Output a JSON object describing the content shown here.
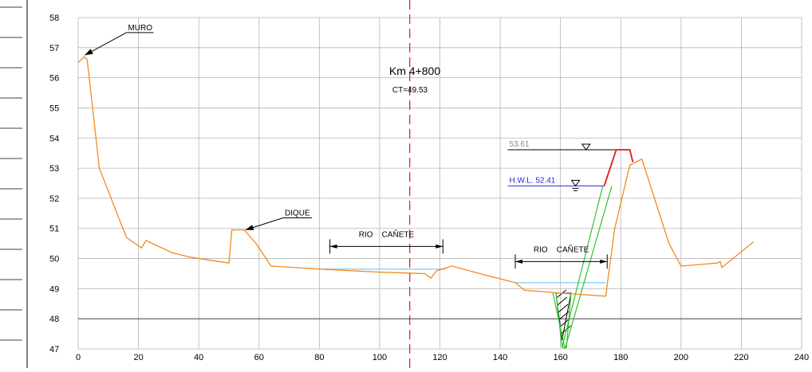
{
  "chart_data": {
    "type": "line",
    "title": "Km  4+800",
    "subtitle": "CT=49.53",
    "xlim": [
      0,
      240
    ],
    "ylim": [
      47,
      58
    ],
    "x_ticks": [
      "0",
      "20",
      "40",
      "60",
      "80",
      "100",
      "120",
      "140",
      "160",
      "180",
      "200",
      "220",
      "240"
    ],
    "y_ticks": [
      "47",
      "48",
      "49",
      "50",
      "51",
      "52",
      "53",
      "54",
      "55",
      "56",
      "57",
      "58"
    ],
    "grid": true,
    "centerline_x": 110,
    "colors": {
      "terrain": "#f08a1c",
      "grid": "#b4b4b4",
      "centerline": "#e01818",
      "levee": "#e01818",
      "hwl": "#1f2fd8",
      "water": "#9fd6f0",
      "green": "#2fc12f",
      "black": "#000000"
    },
    "terrain": [
      [
        0,
        56.5
      ],
      [
        2,
        56.7
      ],
      [
        3,
        56.6
      ],
      [
        7,
        53
      ],
      [
        16,
        50.7
      ],
      [
        21,
        50.35
      ],
      [
        22.5,
        50.6
      ],
      [
        31,
        50.2
      ],
      [
        37,
        50.05
      ],
      [
        50,
        49.85
      ],
      [
        51,
        50.95
      ],
      [
        55,
        50.95
      ],
      [
        59,
        50.5
      ],
      [
        64,
        49.75
      ],
      [
        80,
        49.65
      ],
      [
        100,
        49.55
      ],
      [
        115,
        49.5
      ],
      [
        117,
        49.35
      ],
      [
        119,
        49.6
      ],
      [
        124,
        49.75
      ],
      [
        135,
        49.45
      ],
      [
        145,
        49.2
      ],
      [
        148,
        48.95
      ],
      [
        160,
        48.85
      ],
      [
        175,
        48.75
      ],
      [
        178,
        51
      ],
      [
        183,
        53.1
      ],
      [
        187,
        53.3
      ],
      [
        196,
        50.5
      ],
      [
        200,
        49.75
      ],
      [
        212,
        49.85
      ],
      [
        213,
        49.9
      ],
      [
        213.5,
        49.7
      ],
      [
        224,
        50.55
      ]
    ],
    "levee": [
      [
        174.5,
        52.41
      ],
      [
        178.5,
        53.61
      ],
      [
        183,
        53.61
      ],
      [
        184,
        53.2
      ]
    ],
    "water_lines": [
      {
        "x1": 82,
        "x2": 122,
        "y": 49.65
      },
      {
        "x1": 145,
        "x2": 175,
        "y": 49.2
      }
    ],
    "green_trench": [
      {
        "points": [
          [
            157.5,
            48.85
          ],
          [
            161.5,
            47
          ],
          [
            177,
            52.4
          ]
        ]
      },
      {
        "points": [
          [
            174,
            52.4
          ],
          [
            160.5,
            47.05
          ],
          [
            158.5,
            48.85
          ]
        ]
      },
      {
        "points": [
          [
            160.5,
            47.05
          ],
          [
            162,
            47.05
          ],
          [
            163.5,
            48.85
          ]
        ]
      }
    ],
    "hatch_region": [
      [
        158.5,
        48.85
      ],
      [
        163.5,
        48.85
      ],
      [
        160.5,
        47.3
      ]
    ],
    "levels": [
      {
        "label": "53.61",
        "value": 53.61,
        "x1": 142.5,
        "x2": 183
      },
      {
        "label": "H.W.L.  52.41",
        "value": 52.41,
        "x1": 142.5,
        "x2": 174.5
      }
    ],
    "annotations": [
      {
        "label": "MURO",
        "text_x": 16,
        "text_y": 57.5,
        "line_end_x": 25,
        "arrow_x": 2.2,
        "arrow_y": 56.75
      },
      {
        "label": "DIQUE",
        "text_x": 68,
        "text_y": 51.35,
        "line_end_x": 77.5,
        "arrow_x": 55.5,
        "arrow_y": 50.95
      }
    ],
    "dimensions": [
      {
        "label": "RIO    CAÑETE",
        "x1": 83.5,
        "x2": 121,
        "y": 50.4
      },
      {
        "label": "RIO    CAÑETE",
        "x1": 145,
        "x2": 175.5,
        "y": 49.9
      }
    ],
    "left_panel_rows": 12
  }
}
